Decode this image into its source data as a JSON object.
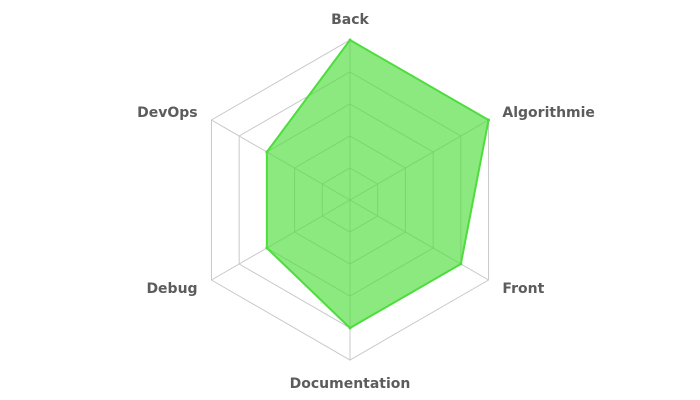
{
  "chart_data": {
    "type": "radar",
    "categories": [
      "Back",
      "Algorithmie",
      "Front",
      "Documentation",
      "Debug",
      "DevOps"
    ],
    "series": [
      {
        "values": [
          5,
          5,
          4,
          4,
          3,
          3
        ],
        "color": "#4ddd3c"
      }
    ],
    "rlim": [
      0,
      5
    ],
    "levels": 5,
    "grid": true,
    "legend": false
  }
}
